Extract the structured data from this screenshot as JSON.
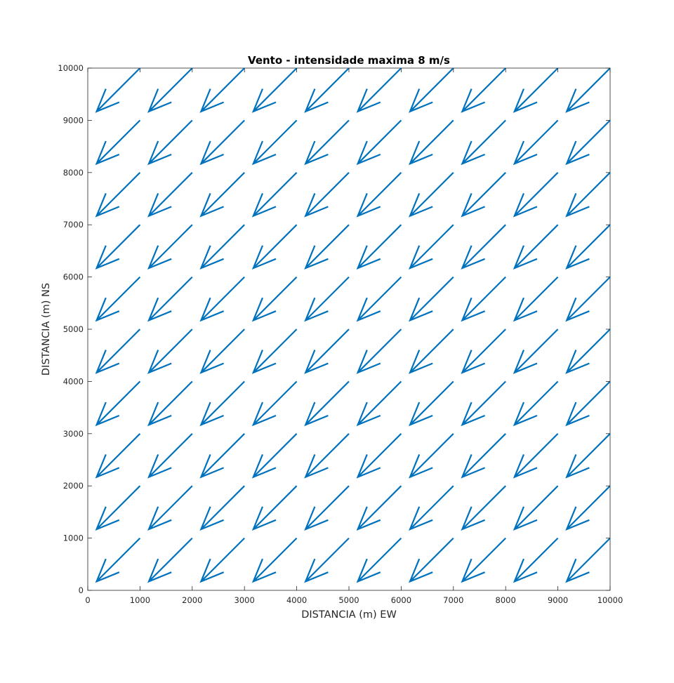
{
  "chart_data": {
    "type": "quiver",
    "title": "Vento - intensidade maxima 8 m/s",
    "xlabel": "DISTANCIA (m) EW",
    "ylabel": "DISTANCIA (m) NS",
    "xlim": [
      0,
      10000
    ],
    "ylim": [
      0,
      10000
    ],
    "xticks": [
      0,
      1000,
      2000,
      3000,
      4000,
      5000,
      6000,
      7000,
      8000,
      9000,
      10000
    ],
    "yticks": [
      0,
      1000,
      2000,
      3000,
      4000,
      5000,
      6000,
      7000,
      8000,
      9000,
      10000
    ],
    "xtick_labels": [
      "0",
      "1000",
      "2000",
      "3000",
      "4000",
      "5000",
      "6000",
      "7000",
      "8000",
      "9000",
      "10000"
    ],
    "ytick_labels": [
      "0",
      "1000",
      "2000",
      "3000",
      "4000",
      "5000",
      "6000",
      "7000",
      "8000",
      "9000",
      "10000"
    ],
    "grid": false,
    "color": "#0072BD",
    "x": [
      1000,
      2000,
      3000,
      4000,
      5000,
      6000,
      7000,
      8000,
      9000,
      10000
    ],
    "y": [
      1000,
      2000,
      3000,
      4000,
      5000,
      6000,
      7000,
      8000,
      9000,
      10000
    ],
    "u": -830,
    "v": -830
  }
}
